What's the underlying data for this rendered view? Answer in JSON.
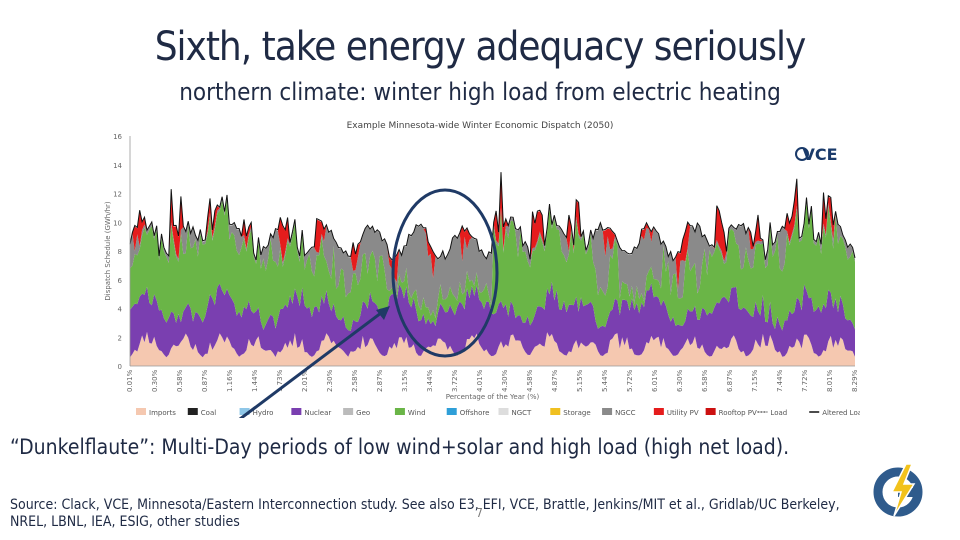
{
  "slide": {
    "title": "Sixth, take energy adequacy seriously",
    "subtitle": "northern climate: winter high load from electric heating",
    "body": "“Dunkelflaute”: Multi-Day periods of low wind+solar and high load (high net load).",
    "source": "Source: Clack, VCE, Minnesota/Eastern Interconnection study. See also E3, EFI, VCE, Brattle, Jenkins/MIT et al., Gridlab/UC Berkeley, NREL, LBNL, IEA, ESIG, other studies",
    "slide_number": "7"
  },
  "chart_data": {
    "type": "area",
    "title": "Example Minnesota-wide Winter Economic Dispatch (2050)",
    "brand": "VCE",
    "xlabel": "Percentage of the Year (%)",
    "ylabel": "Dispatch Schedule (GWh/hr)",
    "ylim": [
      0,
      16
    ],
    "yticks": [
      "0",
      "2",
      "4",
      "6",
      "8",
      "10",
      "12",
      "14",
      "16"
    ],
    "xticks": [
      "0.01%",
      "0.30%",
      "0.58%",
      "0.87%",
      "1.16%",
      "1.44%",
      "1.73%",
      "2.01%",
      "2.30%",
      "2.58%",
      "2.87%",
      "3.15%",
      "3.44%",
      "3.72%",
      "4.01%",
      "4.30%",
      "4.58%",
      "4.87%",
      "5.15%",
      "5.44%",
      "5.72%",
      "6.01%",
      "6.30%",
      "6.58%",
      "6.87%",
      "7.15%",
      "7.44%",
      "7.72%",
      "8.01%",
      "8.29%"
    ],
    "legend": [
      "Imports",
      "Coal",
      "Hydro",
      "Nuclear",
      "Geo",
      "Wind",
      "Offshore",
      "NGCT",
      "Storage",
      "NGCC",
      "Utility PV",
      "Rooftop PV",
      "Load",
      "Altered Load"
    ],
    "colors": {
      "Imports": "#f5c8b0",
      "Coal": "#222222",
      "Hydro": "#8fc7e8",
      "Nuclear": "#7a3fb0",
      "Geo": "#bbbbbb",
      "Wind": "#6ab547",
      "Offshore": "#2f9fd8",
      "NGCT": "#dddddd",
      "Storage": "#f0c020",
      "NGCC": "#8a8a8a",
      "Utility PV": "#e51c1c",
      "Rooftop PV": "#cc1010",
      "Load": "#666666",
      "Altered Load": "#111111"
    },
    "highlight": "Dunkelflaute period (approx. 3.0%–4.1% of year)"
  }
}
